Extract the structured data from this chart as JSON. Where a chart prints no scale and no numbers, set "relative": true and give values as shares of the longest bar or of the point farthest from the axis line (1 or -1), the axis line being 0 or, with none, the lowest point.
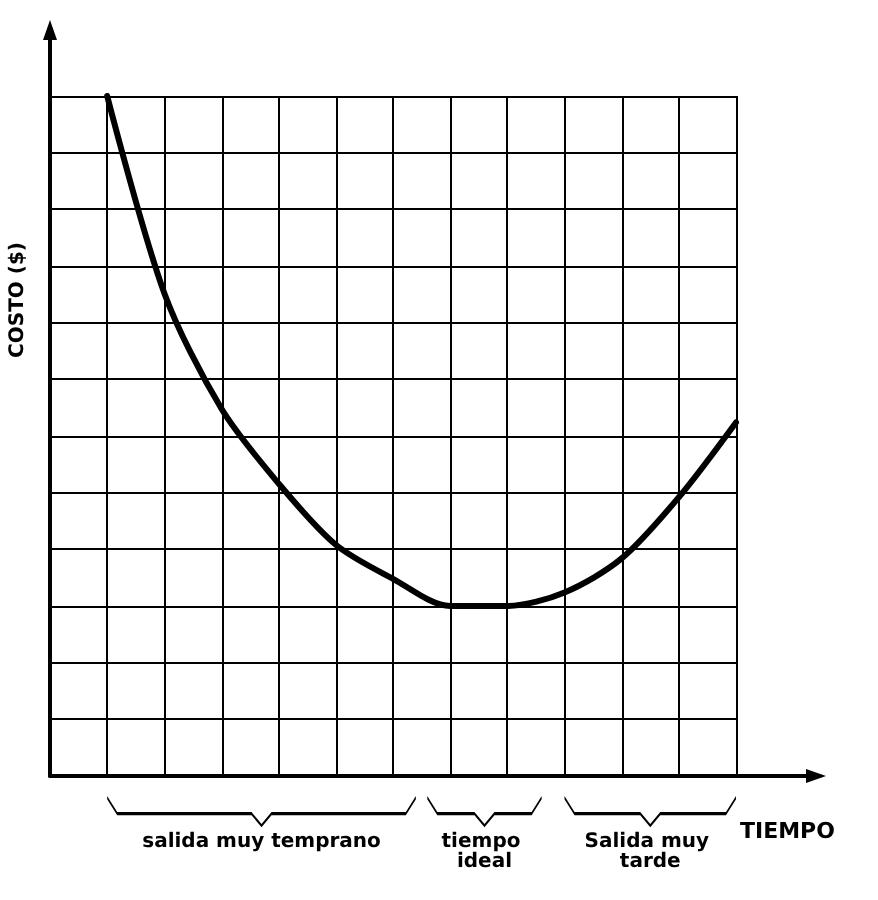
{
  "chart_data": {
    "type": "line",
    "relative": true,
    "xlabel": "TIEMPO",
    "ylabel": "COSTO ($)",
    "categories": [
      null,
      null,
      null,
      null,
      null,
      null,
      null,
      null,
      null,
      null,
      null,
      null,
      null
    ],
    "series": [
      {
        "color": "#000000",
        "values": [
          null,
          1.0,
          0.71,
          0.54,
          0.43,
          0.34,
          0.29,
          0.25,
          0.25,
          0.27,
          0.32,
          0.41,
          0.52
        ]
      }
    ],
    "annotations": [
      "salida muy temprano",
      "tiempo ideal",
      "Salida muy tarde"
    ],
    "grid": true,
    "marker": "none",
    "line_style": "solid"
  }
}
